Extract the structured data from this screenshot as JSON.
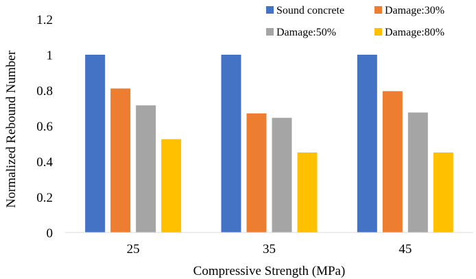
{
  "chart_data": {
    "type": "bar",
    "title": "",
    "xlabel": "Compressive Strength (MPa)",
    "ylabel": "Normalized Rebound Number",
    "categories": [
      "25",
      "35",
      "45"
    ],
    "ylim": [
      0,
      1.2
    ],
    "yticks": [
      "0",
      "0.2",
      "0.4",
      "0.6",
      "0.8",
      "1",
      "1.2"
    ],
    "grid": false,
    "legend_position": "top-right",
    "series": [
      {
        "name": "Sound concrete",
        "color": "#4472C4",
        "values": [
          1.0,
          1.0,
          1.0
        ]
      },
      {
        "name": "Damage:30%",
        "color": "#ED7D31",
        "values": [
          0.81,
          0.67,
          0.795
        ]
      },
      {
        "name": "Damage:50%",
        "color": "#A5A5A5",
        "values": [
          0.715,
          0.645,
          0.675
        ]
      },
      {
        "name": "Damage:80%",
        "color": "#FFC000",
        "values": [
          0.525,
          0.45,
          0.45
        ]
      }
    ]
  }
}
